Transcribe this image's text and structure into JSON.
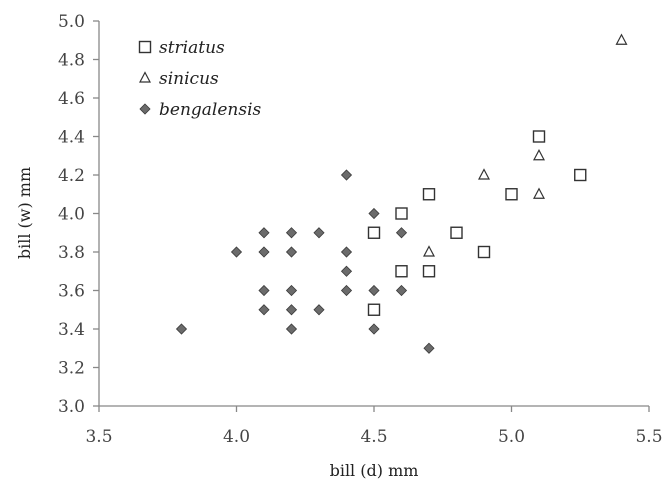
{
  "chart_data": {
    "type": "scatter",
    "title": "",
    "xlabel": "bill (d) mm",
    "ylabel": "bill (w) mm",
    "xlim": [
      3.5,
      5.5
    ],
    "ylim": [
      3.0,
      5.0
    ],
    "xticks": [
      "3.5",
      "4.0",
      "4.5",
      "5.0",
      "5.5"
    ],
    "yticks": [
      "3.0",
      "3.2",
      "3.4",
      "3.6",
      "3.8",
      "4.0",
      "4.2",
      "4.4",
      "4.6",
      "4.8",
      "5.0"
    ],
    "grid": false,
    "legend_position": "top-left",
    "series": [
      {
        "name": "striatus",
        "marker": "square-open",
        "color": "#333333",
        "points": [
          [
            4.5,
            3.5
          ],
          [
            4.5,
            3.9
          ],
          [
            4.6,
            3.7
          ],
          [
            4.6,
            4.0
          ],
          [
            4.7,
            3.7
          ],
          [
            4.7,
            4.1
          ],
          [
            4.8,
            3.9
          ],
          [
            4.9,
            3.8
          ],
          [
            5.0,
            4.1
          ],
          [
            5.1,
            4.4
          ],
          [
            5.25,
            4.2
          ]
        ]
      },
      {
        "name": "sinicus",
        "marker": "triangle-open",
        "color": "#333333",
        "points": [
          [
            4.7,
            3.8
          ],
          [
            4.9,
            4.2
          ],
          [
            5.1,
            4.1
          ],
          [
            5.1,
            4.3
          ],
          [
            5.4,
            4.9
          ]
        ]
      },
      {
        "name": "bengalensis",
        "marker": "diamond-filled",
        "color": "#6b6b6b",
        "points": [
          [
            3.8,
            3.4
          ],
          [
            4.0,
            3.8
          ],
          [
            4.1,
            3.9
          ],
          [
            4.1,
            3.8
          ],
          [
            4.1,
            3.6
          ],
          [
            4.1,
            3.5
          ],
          [
            4.2,
            3.9
          ],
          [
            4.2,
            3.8
          ],
          [
            4.2,
            3.6
          ],
          [
            4.2,
            3.5
          ],
          [
            4.2,
            3.4
          ],
          [
            4.3,
            3.9
          ],
          [
            4.3,
            3.5
          ],
          [
            4.4,
            4.2
          ],
          [
            4.4,
            3.8
          ],
          [
            4.4,
            3.7
          ],
          [
            4.4,
            3.6
          ],
          [
            4.5,
            4.0
          ],
          [
            4.5,
            3.6
          ],
          [
            4.5,
            3.4
          ],
          [
            4.6,
            3.9
          ],
          [
            4.6,
            3.6
          ],
          [
            4.7,
            3.3
          ]
        ]
      }
    ]
  }
}
